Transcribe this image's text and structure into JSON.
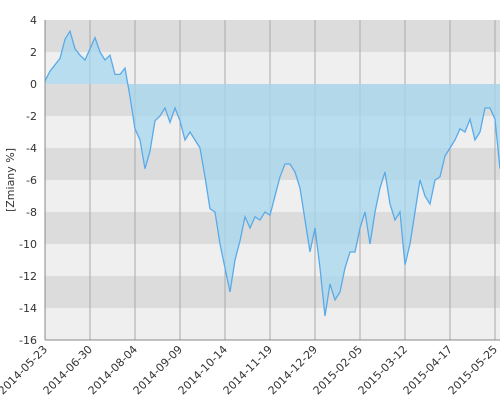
{
  "chart_data": {
    "type": "area",
    "y_label": "[Zmiany %]",
    "categories": [
      "2014-05-23",
      null,
      null,
      null,
      null,
      null,
      null,
      null,
      null,
      "2014-06-30",
      null,
      null,
      null,
      null,
      null,
      null,
      null,
      null,
      "2014-08-04",
      null,
      null,
      null,
      null,
      null,
      null,
      null,
      null,
      "2014-09-09",
      null,
      null,
      null,
      null,
      null,
      null,
      null,
      null,
      "2014-10-14",
      null,
      null,
      null,
      null,
      null,
      null,
      null,
      null,
      "2014-11-19",
      null,
      null,
      null,
      null,
      null,
      null,
      null,
      null,
      "2014-12-29",
      null,
      null,
      null,
      null,
      null,
      null,
      null,
      null,
      "2015-02-05",
      null,
      null,
      null,
      null,
      null,
      null,
      null,
      null,
      "2015-03-12",
      null,
      null,
      null,
      null,
      null,
      null,
      null,
      null,
      "2015-04-17",
      null,
      null,
      null,
      null,
      null,
      null,
      null,
      null,
      "2015-05-25",
      null
    ],
    "values": [
      0.2,
      0.8,
      1.2,
      1.6,
      2.8,
      3.3,
      2.2,
      1.8,
      1.5,
      2.2,
      2.9,
      2.0,
      1.5,
      1.8,
      0.6,
      0.6,
      1.0,
      -0.8,
      -2.8,
      -3.5,
      -5.3,
      -4.2,
      -2.3,
      -2.0,
      -1.5,
      -2.4,
      -1.5,
      -2.3,
      -3.5,
      -3.0,
      -3.5,
      -4.0,
      -5.8,
      -7.8,
      -8.0,
      -10.0,
      -11.5,
      -13.0,
      -11.0,
      -9.8,
      -8.3,
      -9.0,
      -8.3,
      -8.5,
      -8.0,
      -8.2,
      -7.0,
      -5.8,
      -5.0,
      -5.0,
      -5.5,
      -6.5,
      -8.5,
      -10.5,
      -9.0,
      -11.5,
      -14.5,
      -12.5,
      -13.5,
      -13.0,
      -11.5,
      -10.5,
      -10.5,
      -9.0,
      -8.0,
      -10.0,
      -8.0,
      -6.5,
      -5.5,
      -7.5,
      -8.5,
      -8.0,
      -11.3,
      -10.0,
      -8.0,
      -6.0,
      -7.0,
      -7.5,
      -6.0,
      -5.8,
      -4.5,
      -4.0,
      -3.5,
      -2.8,
      -3.0,
      -2.2,
      -3.5,
      -3.0,
      -1.5,
      -1.5,
      -2.2,
      -5.3
    ],
    "color": "#5aaae8",
    "fill": "#a6d7ef",
    "ylim": [
      -16,
      4
    ],
    "yticks": [
      -16,
      -14,
      -12,
      -10,
      -8,
      -6,
      -4,
      -2,
      0,
      2,
      4
    ],
    "band_colors": [
      "#dcdcdc",
      "#efefef"
    ]
  }
}
